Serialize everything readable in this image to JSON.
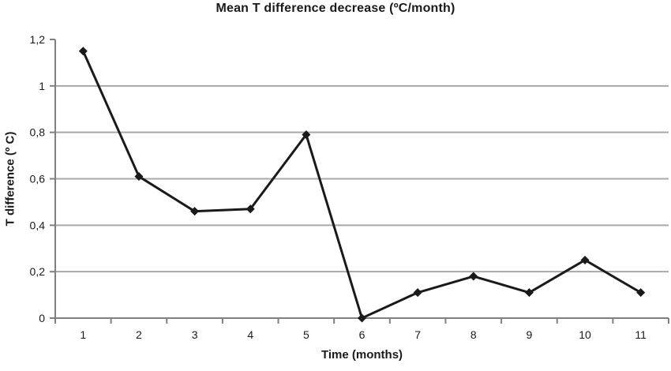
{
  "chart_data": {
    "type": "line",
    "title": "Mean T difference decrease (ºC/month)",
    "xlabel": "Time (months)",
    "ylabel": "T difference (º C)",
    "categories": [
      1,
      2,
      3,
      4,
      5,
      6,
      7,
      8,
      9,
      10,
      11
    ],
    "series": [
      {
        "name": "Mean T difference",
        "values": [
          1.15,
          0.61,
          0.46,
          0.47,
          0.79,
          0.0,
          0.11,
          0.18,
          0.11,
          0.25,
          0.11
        ]
      }
    ],
    "ylim": [
      0,
      1.2
    ],
    "ytick_interval": 0.2,
    "ytick_labels": [
      "0",
      "0,2",
      "0,4",
      "0,6",
      "0,8",
      "1",
      "1,2"
    ],
    "decimal_separator": ",",
    "grid": true,
    "gridlines_at": [
      0.2,
      0.4,
      0.6,
      0.8,
      1.0
    ],
    "legend_position": "none",
    "marker": "diamond",
    "colors": {
      "line": "#1a1a1a",
      "marker": "#1a1a1a",
      "grid": "#a8a8a8",
      "axis": "#808080",
      "text": "#1a1a1a",
      "background": "#ffffff"
    }
  }
}
